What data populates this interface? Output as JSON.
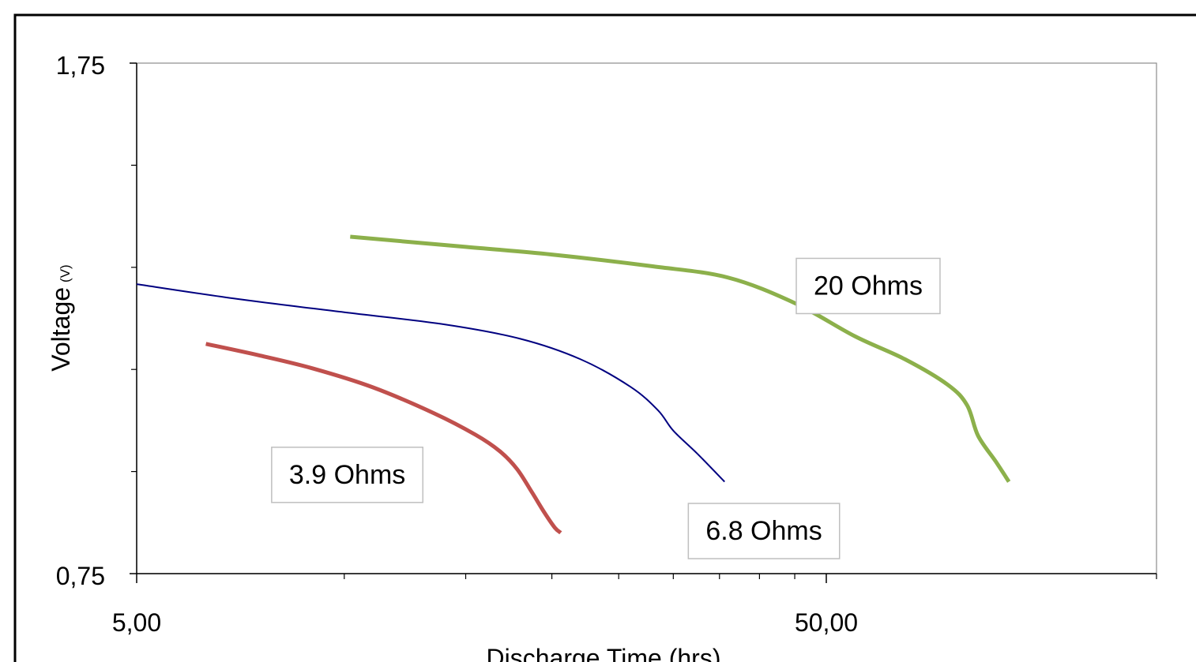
{
  "chart_data": {
    "type": "line",
    "xlabel": "Discharge Time (hrs)",
    "ylabel": "Voltage",
    "ylabel_unit": "(V)",
    "x_scale": "log",
    "xlim": [
      5,
      95
    ],
    "ylim": [
      0.75,
      1.75
    ],
    "x_tick_values": [
      5,
      50
    ],
    "x_tick_labels": [
      "5,00",
      "50,00"
    ],
    "x_minor_ticks": [
      10,
      15,
      20,
      25,
      30,
      35,
      40,
      45
    ],
    "y_tick_values": [
      0.75,
      1.75
    ],
    "y_tick_labels": [
      "0,75",
      "1,75"
    ],
    "y_minor_ticks": [
      0.95,
      1.15,
      1.35,
      1.55
    ],
    "grid": false,
    "legend": "none",
    "series": [
      {
        "color": "#c0504d",
        "width": 5,
        "points": [
          [
            6.3,
            1.2
          ],
          [
            7.5,
            1.178
          ],
          [
            9.0,
            1.152
          ],
          [
            11.0,
            1.115
          ],
          [
            13.5,
            1.064
          ],
          [
            15.5,
            1.022
          ],
          [
            16.8,
            0.99
          ],
          [
            17.8,
            0.955
          ],
          [
            18.7,
            0.91
          ],
          [
            19.5,
            0.87
          ],
          [
            20.2,
            0.84
          ],
          [
            20.6,
            0.83
          ]
        ]
      },
      {
        "color": "#000080",
        "width": 2,
        "points": [
          [
            5.0,
            1.317
          ],
          [
            7.0,
            1.288
          ],
          [
            10.0,
            1.262
          ],
          [
            14.0,
            1.238
          ],
          [
            18.0,
            1.21
          ],
          [
            22.0,
            1.17
          ],
          [
            26.0,
            1.116
          ],
          [
            28.5,
            1.07
          ],
          [
            30.0,
            1.03
          ],
          [
            32.5,
            0.985
          ],
          [
            35.6,
            0.93
          ]
        ]
      },
      {
        "color": "#8cb04b",
        "width": 5,
        "points": [
          [
            10.2,
            1.41
          ],
          [
            15.0,
            1.39
          ],
          [
            20.0,
            1.375
          ],
          [
            28.0,
            1.352
          ],
          [
            36.0,
            1.33
          ],
          [
            45.0,
            1.28
          ],
          [
            55.0,
            1.215
          ],
          [
            65.0,
            1.17
          ],
          [
            75.0,
            1.12
          ],
          [
            80.0,
            1.08
          ],
          [
            83.0,
            1.02
          ],
          [
            88.0,
            0.97
          ],
          [
            92.0,
            0.93
          ]
        ]
      }
    ],
    "annotations": [
      {
        "text": "20 Ohms",
        "x": 57.5,
        "y": 1.315
      },
      {
        "text": "3.9 Ohms",
        "x": 10.1,
        "y": 0.945
      },
      {
        "text": "6.8 Ohms",
        "x": 40.6,
        "y": 0.835
      }
    ]
  }
}
